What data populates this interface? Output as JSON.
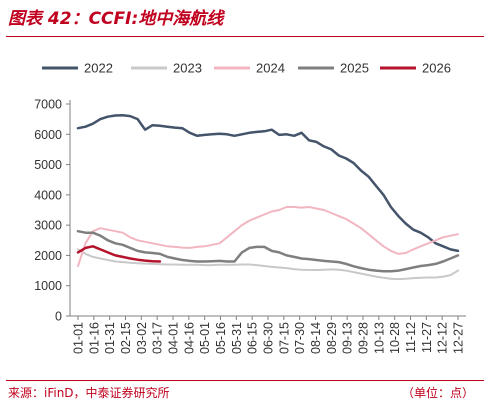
{
  "title": "图表 42：CCFI:地中海航线",
  "source": "来源：iFinD，中泰证券研究所",
  "unit": "（单位：点）",
  "theme": {
    "accent": "#c0001e"
  },
  "chart_data": {
    "type": "line",
    "title": "图表 42：CCFI:地中海航线",
    "xlabel": "",
    "ylabel": "",
    "ylim": [
      0,
      7000
    ],
    "yticks": [
      0,
      1000,
      2000,
      3000,
      4000,
      5000,
      6000,
      7000
    ],
    "x_tick_labels": [
      "01-01",
      "01-16",
      "01-31",
      "02-15",
      "03-02",
      "03-17",
      "04-01",
      "04-16",
      "05-01",
      "05-16",
      "05-31",
      "06-15",
      "06-30",
      "07-15",
      "07-30",
      "08-14",
      "08-29",
      "09-13",
      "09-28",
      "10-13",
      "10-28",
      "11-12",
      "11-27",
      "12-12",
      "12-27"
    ],
    "grid": false,
    "legend_position": "top",
    "series": [
      {
        "name": "2022",
        "color": "#44546a",
        "width": 2.5,
        "values": [
          6200,
          6250,
          6350,
          6500,
          6580,
          6620,
          6630,
          6600,
          6500,
          6150,
          6300,
          6280,
          6250,
          6220,
          6200,
          6050,
          5950,
          5980,
          6000,
          6020,
          6000,
          5950,
          6000,
          6050,
          6080,
          6100,
          6150,
          5980,
          6000,
          5950,
          6050,
          5800,
          5750,
          5600,
          5500,
          5300,
          5200,
          5050,
          4800,
          4600,
          4300,
          4000,
          3600,
          3300,
          3050,
          2850,
          2750,
          2600,
          2400,
          2300,
          2200,
          2150
        ]
      },
      {
        "name": "2023",
        "color": "#c9c9c9",
        "width": 2,
        "values": [
          2200,
          2050,
          1950,
          1900,
          1850,
          1800,
          1780,
          1760,
          1740,
          1730,
          1720,
          1710,
          1700,
          1700,
          1690,
          1690,
          1690,
          1680,
          1680,
          1690,
          1690,
          1690,
          1700,
          1700,
          1680,
          1650,
          1620,
          1600,
          1580,
          1550,
          1530,
          1520,
          1520,
          1530,
          1540,
          1530,
          1500,
          1450,
          1400,
          1350,
          1300,
          1260,
          1230,
          1220,
          1230,
          1250,
          1260,
          1270,
          1270,
          1300,
          1350,
          1500
        ]
      },
      {
        "name": "2024",
        "color": "#f2b6c0",
        "width": 2,
        "values": [
          1650,
          2400,
          2800,
          2900,
          2850,
          2800,
          2750,
          2600,
          2500,
          2450,
          2400,
          2350,
          2300,
          2280,
          2260,
          2250,
          2280,
          2300,
          2350,
          2400,
          2600,
          2800,
          3000,
          3150,
          3250,
          3350,
          3450,
          3500,
          3600,
          3600,
          3580,
          3600,
          3550,
          3500,
          3400,
          3300,
          3200,
          3050,
          2900,
          2700,
          2500,
          2300,
          2150,
          2050,
          2080,
          2200,
          2300,
          2400,
          2500,
          2600,
          2650,
          2700
        ]
      },
      {
        "name": "2025",
        "color": "#7f7f7f",
        "width": 2.5,
        "values": [
          2800,
          2750,
          2750,
          2650,
          2500,
          2400,
          2350,
          2250,
          2150,
          2100,
          2080,
          2050,
          1950,
          1900,
          1850,
          1820,
          1800,
          1800,
          1810,
          1820,
          1800,
          1800,
          2100,
          2250,
          2280,
          2280,
          2150,
          2100,
          2000,
          1950,
          1900,
          1880,
          1850,
          1820,
          1800,
          1780,
          1720,
          1640,
          1580,
          1530,
          1500,
          1480,
          1480,
          1500,
          1550,
          1600,
          1650,
          1680,
          1720,
          1800,
          1900,
          2000
        ]
      },
      {
        "name": "2026",
        "color": "#b5122c",
        "width": 2.5,
        "values": [
          2100,
          2250,
          2300,
          2200,
          2100,
          2000,
          1950,
          1900,
          1860,
          1830,
          1810,
          1800
        ]
      }
    ]
  }
}
